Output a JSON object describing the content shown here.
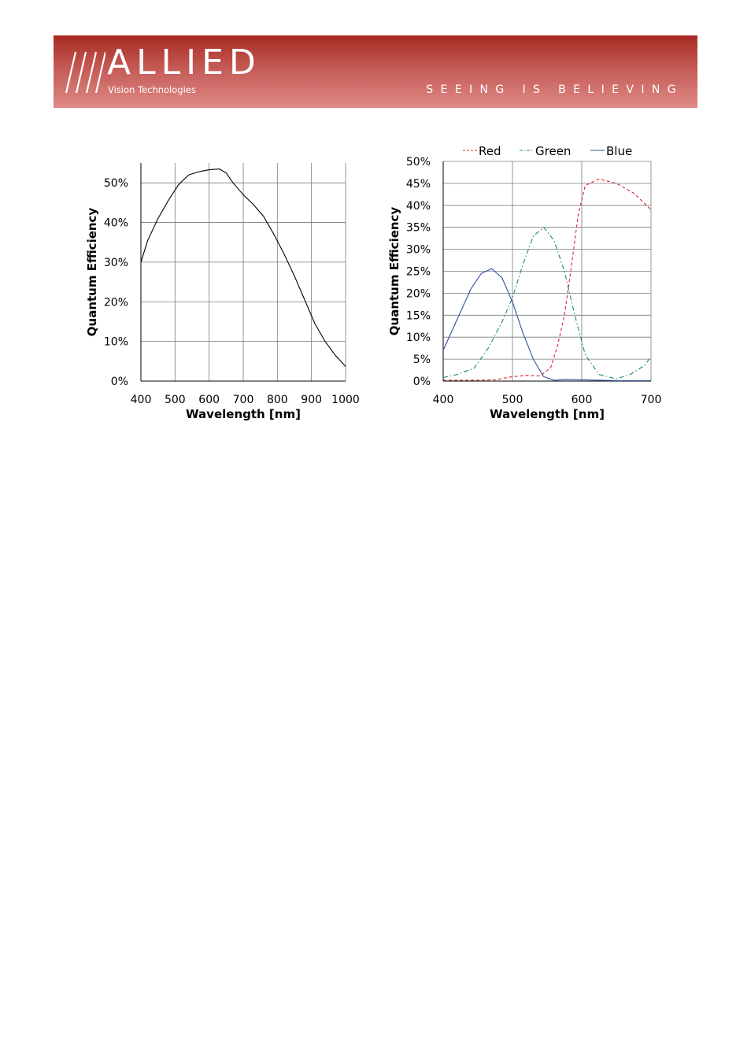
{
  "header": {
    "logo_text": "ALLIED",
    "logo_subtext": "Vision Technologies",
    "tagline": "SEEING IS BELIEVING"
  },
  "chart_data": [
    {
      "type": "line",
      "xlabel": "Wavelength [nm]",
      "ylabel": "Quantum Efficiency",
      "xlim": [
        400,
        1000
      ],
      "ylim": [
        0,
        0.55
      ],
      "xticks": [
        400,
        500,
        600,
        700,
        800,
        900,
        1000
      ],
      "xtick_labels": [
        "400",
        "500",
        "600",
        "700",
        "800",
        "900",
        "1000"
      ],
      "yticks": [
        0,
        0.1,
        0.2,
        0.3,
        0.4,
        0.5
      ],
      "ytick_labels": [
        "0%",
        "10%",
        "20%",
        "30%",
        "40%",
        "50%"
      ],
      "grid": true,
      "series": [
        {
          "color": "#000000",
          "dash": "solid",
          "x": [
            400,
            420,
            450,
            480,
            510,
            540,
            570,
            600,
            630,
            650,
            670,
            700,
            730,
            760,
            790,
            820,
            850,
            880,
            910,
            940,
            970,
            1000
          ],
          "y": [
            0.3,
            0.355,
            0.41,
            0.455,
            0.495,
            0.52,
            0.528,
            0.533,
            0.535,
            0.525,
            0.5,
            0.47,
            0.445,
            0.415,
            0.37,
            0.32,
            0.265,
            0.205,
            0.145,
            0.1,
            0.065,
            0.037
          ]
        }
      ]
    },
    {
      "type": "line",
      "xlabel": "Wavelength [nm]",
      "ylabel": "Quantum Efficiency",
      "xlim": [
        400,
        700
      ],
      "ylim": [
        0,
        0.5
      ],
      "xticks": [
        400,
        500,
        600,
        700
      ],
      "xtick_labels": [
        "400",
        "500",
        "600",
        "700"
      ],
      "yticks": [
        0,
        0.05,
        0.1,
        0.15,
        0.2,
        0.25,
        0.3,
        0.35,
        0.4,
        0.45,
        0.5
      ],
      "ytick_labels": [
        "0%",
        "5%",
        "10%",
        "15%",
        "20%",
        "25%",
        "30%",
        "35%",
        "40%",
        "45%",
        "50%"
      ],
      "grid": true,
      "legend": "top",
      "series": [
        {
          "name": "Red",
          "color": "#e0232d",
          "dash": "dashed",
          "x": [
            400,
            450,
            475,
            500,
            520,
            540,
            555,
            565,
            575,
            585,
            595,
            605,
            625,
            650,
            675,
            700
          ],
          "y": [
            0.002,
            0.002,
            0.003,
            0.01,
            0.013,
            0.012,
            0.03,
            0.08,
            0.15,
            0.26,
            0.38,
            0.445,
            0.46,
            0.45,
            0.428,
            0.39
          ]
        },
        {
          "name": "Green",
          "color": "#1a8a6a",
          "dash": "dashdot",
          "x": [
            400,
            420,
            445,
            465,
            485,
            500,
            515,
            530,
            545,
            560,
            575,
            590,
            605,
            625,
            650,
            670,
            690,
            700
          ],
          "y": [
            0.008,
            0.015,
            0.03,
            0.075,
            0.135,
            0.19,
            0.265,
            0.33,
            0.35,
            0.32,
            0.25,
            0.15,
            0.06,
            0.015,
            0.005,
            0.015,
            0.035,
            0.055
          ]
        },
        {
          "name": "Blue",
          "color": "#2f4f9e",
          "dash": "solid",
          "x": [
            400,
            420,
            440,
            455,
            470,
            485,
            500,
            515,
            530,
            545,
            560,
            575,
            600,
            650,
            700
          ],
          "y": [
            0.07,
            0.14,
            0.21,
            0.245,
            0.256,
            0.235,
            0.18,
            0.11,
            0.05,
            0.01,
            0.002,
            0.004,
            0.003,
            0.001,
            0.001
          ]
        }
      ]
    }
  ]
}
